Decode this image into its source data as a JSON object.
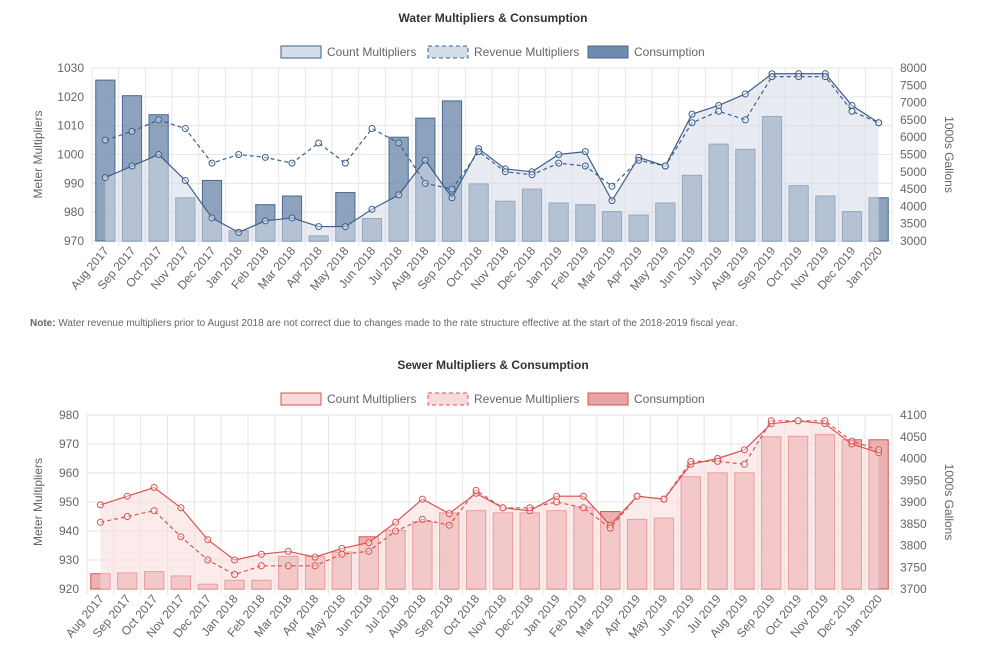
{
  "note": {
    "label": "Note:",
    "text": "Water revenue multipliers prior to August 2018 are not correct due to changes made to the rate structure effective at the start of the 2018-2019 fiscal year."
  },
  "chart_data": [
    {
      "type": "bar",
      "title": "Water Multipliers & Consumption",
      "ylabel": "Meter Multipliers",
      "y2label": "1000s Gallons",
      "ylim": [
        970,
        1030
      ],
      "y2lim": [
        3000,
        8000
      ],
      "categories": [
        "Aug 2017",
        "Sep 2017",
        "Oct 2017",
        "Nov 2017",
        "Dec 2017",
        "Jan 2018",
        "Feb 2018",
        "Mar 2018",
        "Apr 2018",
        "May 2018",
        "Jun 2018",
        "Jul 2018",
        "Aug 2018",
        "Sep 2018",
        "Oct 2018",
        "Nov 2018",
        "Dec 2018",
        "Jan 2019",
        "Feb 2019",
        "Mar 2019",
        "Apr 2019",
        "May 2019",
        "Jun 2019",
        "Jul 2019",
        "Aug 2019",
        "Sep 2019",
        "Oct 2019",
        "Nov 2019",
        "Dec 2019",
        "Jan 2020"
      ],
      "legend": [
        "Count Multipliers",
        "Revenue Multipliers",
        "Consumption"
      ],
      "legend_position": "top",
      "colors": {
        "line": "#3d5f8c",
        "bar_fill": "#6f8bad",
        "bar_stroke": "#4a6891",
        "area": "#d5dde8"
      },
      "series": [
        {
          "name": "Count Multipliers",
          "type": "area-line",
          "axis": "left",
          "values": [
            992,
            996,
            1000,
            991,
            978,
            973,
            977,
            978,
            975,
            975,
            981,
            986,
            998,
            985,
            1002,
            995,
            994,
            1000,
            1001,
            984,
            999,
            996,
            1014,
            1017,
            1021,
            1028,
            1028,
            1028,
            1017,
            1011
          ]
        },
        {
          "name": "Revenue Multipliers",
          "type": "dashed-line",
          "axis": "left",
          "values": [
            1005,
            1008,
            1012,
            1009,
            997,
            1000,
            999,
            997,
            1004,
            997,
            1009,
            1004,
            990,
            988,
            1001,
            994,
            993,
            997,
            996,
            989,
            998,
            996,
            1011,
            1015,
            1012,
            1027,
            1027,
            1027,
            1015,
            1011
          ]
        },
        {
          "name": "Consumption",
          "type": "bar",
          "axis": "right",
          "values": [
            7650,
            7200,
            6650,
            4250,
            4750,
            3300,
            4050,
            4300,
            3150,
            4400,
            3650,
            6000,
            6550,
            7050,
            4650,
            4150,
            4500,
            4100,
            4050,
            3850,
            3750,
            4100,
            4900,
            5800,
            5650,
            6600,
            4600,
            4300,
            3850,
            4250
          ]
        }
      ],
      "grid": true
    },
    {
      "type": "bar",
      "title": "Sewer Multipliers & Consumption",
      "ylabel": "Meter Multipliers",
      "y2label": "1000s Gallons",
      "ylim": [
        920,
        980
      ],
      "y2lim": [
        3700,
        4100
      ],
      "categories": [
        "Aug 2017",
        "Sep 2017",
        "Oct 2017",
        "Nov 2017",
        "Dec 2017",
        "Jan 2018",
        "Feb 2018",
        "Mar 2018",
        "Apr 2018",
        "May 2018",
        "Jun 2018",
        "Jul 2018",
        "Aug 2018",
        "Sep 2018",
        "Oct 2018",
        "Nov 2018",
        "Dec 2018",
        "Jan 2019",
        "Feb 2019",
        "Mar 2019",
        "Apr 2019",
        "May 2019",
        "Jun 2019",
        "Jul 2019",
        "Aug 2019",
        "Sep 2019",
        "Oct 2019",
        "Nov 2019",
        "Dec 2019",
        "Jan 2020"
      ],
      "legend": [
        "Count Multipliers",
        "Revenue Multipliers",
        "Consumption"
      ],
      "legend_position": "top",
      "colors": {
        "line": "#d9534f",
        "bar_fill": "#e8a3a3",
        "bar_stroke": "#d9534f",
        "area": "#f7dada"
      },
      "series": [
        {
          "name": "Count Multipliers",
          "type": "area-line",
          "axis": "left",
          "values": [
            949,
            952,
            955,
            948,
            937,
            930,
            932,
            933,
            931,
            934,
            936,
            943,
            951,
            946,
            953,
            948,
            947,
            952,
            952,
            942,
            952,
            951,
            963,
            965,
            968,
            977,
            978,
            977,
            970,
            967
          ]
        },
        {
          "name": "Revenue Multipliers",
          "type": "dashed-line",
          "axis": "left",
          "values": [
            943,
            945,
            947,
            938,
            930,
            925,
            928,
            928,
            928,
            932,
            933,
            940,
            944,
            942,
            954,
            948,
            948,
            950,
            948,
            941,
            952,
            951,
            964,
            964,
            963,
            978,
            978,
            978,
            971,
            968
          ]
        },
        {
          "name": "Consumption",
          "type": "bar",
          "axis": "right",
          "values": [
            3735,
            3737,
            3740,
            3730,
            3711,
            3720,
            3720,
            3775,
            3775,
            3785,
            3820,
            3835,
            3855,
            3875,
            3880,
            3875,
            3875,
            3880,
            3888,
            3878,
            3860,
            3863,
            3958,
            3967,
            3967,
            4050,
            4051,
            4055,
            4043,
            4043
          ]
        }
      ],
      "grid": true
    }
  ]
}
